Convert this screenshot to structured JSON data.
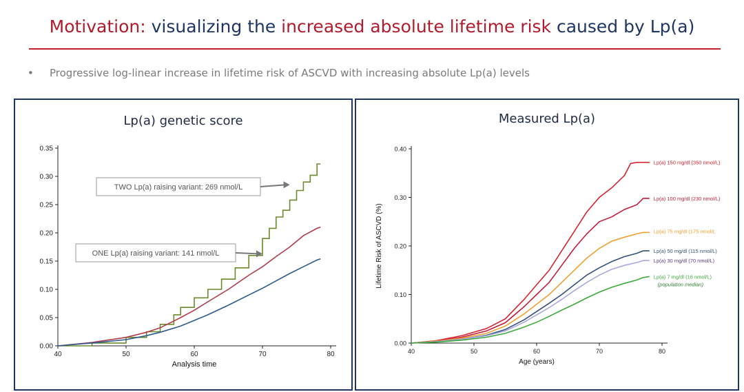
{
  "header": {
    "title_parts": [
      {
        "text": "Motivation: ",
        "color": "#b01c2c"
      },
      {
        "text": "visualizing the ",
        "color": "#1f3564"
      },
      {
        "text": "increased absolute lifetime risk ",
        "color": "#b01c2c"
      },
      {
        "text": "caused by Lp(a)",
        "color": "#1f3564"
      }
    ],
    "bullet": "Progressive log-linear increase in lifetime risk of ASCVD with increasing absolute Lp(a) levels"
  },
  "chart_data": [
    {
      "type": "line",
      "title": "Lp(a) genetic score",
      "xlabel": "Analysis time",
      "ylabel": "",
      "xlim": [
        40,
        80
      ],
      "ylim": [
        0,
        0.35
      ],
      "xticks": [
        "40",
        "50",
        "60",
        "70",
        "80"
      ],
      "yticks": [
        "0.00",
        "0.05",
        "0.10",
        "0.15",
        "0.20",
        "0.25",
        "0.30",
        "0.35"
      ],
      "series": [
        {
          "color": "#6b8a2a",
          "step": true,
          "x": [
            40,
            45,
            50,
            53,
            55,
            57,
            58,
            60,
            62,
            64,
            66,
            68,
            70,
            71,
            72,
            73,
            74,
            75,
            76,
            77,
            78,
            78.5
          ],
          "y": [
            0.0,
            0.005,
            0.015,
            0.025,
            0.038,
            0.055,
            0.068,
            0.085,
            0.1,
            0.118,
            0.138,
            0.16,
            0.19,
            0.208,
            0.228,
            0.24,
            0.258,
            0.275,
            0.29,
            0.302,
            0.322,
            0.322
          ]
        },
        {
          "color": "#b03a4a",
          "x": [
            40,
            45,
            50,
            53,
            55,
            58,
            60,
            62,
            65,
            68,
            70,
            72,
            74,
            76,
            78,
            78.5
          ],
          "y": [
            0.0,
            0.006,
            0.015,
            0.024,
            0.032,
            0.05,
            0.063,
            0.078,
            0.1,
            0.125,
            0.14,
            0.158,
            0.175,
            0.195,
            0.208,
            0.21
          ]
        },
        {
          "color": "#2c5a8c",
          "x": [
            40,
            45,
            50,
            53,
            55,
            58,
            60,
            62,
            65,
            68,
            70,
            72,
            74,
            76,
            78,
            78.5
          ],
          "y": [
            0.0,
            0.005,
            0.011,
            0.018,
            0.024,
            0.035,
            0.045,
            0.055,
            0.072,
            0.09,
            0.102,
            0.115,
            0.128,
            0.14,
            0.152,
            0.154
          ]
        }
      ],
      "annotations": [
        {
          "text": "TWO Lp(a) raising variant: 269 nmol/L",
          "x": 74,
          "y": 0.285
        },
        {
          "text": "ONE Lp(a) raising variant: 141 nmol/L",
          "x": 70,
          "y": 0.163
        }
      ]
    },
    {
      "type": "line",
      "title": "Measured Lp(a)",
      "xlabel": "Age (years)",
      "ylabel": "Lifetime Risk of ASCVD (%)",
      "xlim": [
        40,
        80
      ],
      "ylim": [
        0,
        0.4
      ],
      "xticks": [
        "40",
        "50",
        "60",
        "70",
        "80"
      ],
      "yticks": [
        "0.00",
        "0.10",
        "0.20",
        "0.30",
        "0.40"
      ],
      "series": [
        {
          "name": "Lp(a) 150 mg/dl (350 nmol/L)",
          "color": "#d6222e",
          "x": [
            40,
            44,
            48,
            52,
            55,
            58,
            60,
            62,
            64,
            66,
            68,
            70,
            72,
            74,
            75,
            76,
            78
          ],
          "y": [
            0.0,
            0.005,
            0.015,
            0.03,
            0.05,
            0.09,
            0.12,
            0.15,
            0.19,
            0.23,
            0.27,
            0.3,
            0.32,
            0.345,
            0.37,
            0.372,
            0.372
          ]
        },
        {
          "name": "Lp(a) 100 mg/dl (230 nmol/L)",
          "color": "#c01c3c",
          "x": [
            40,
            44,
            48,
            52,
            55,
            58,
            60,
            62,
            64,
            66,
            68,
            70,
            72,
            74,
            76,
            77,
            78
          ],
          "y": [
            0.0,
            0.004,
            0.012,
            0.025,
            0.042,
            0.075,
            0.1,
            0.125,
            0.16,
            0.195,
            0.225,
            0.25,
            0.26,
            0.275,
            0.285,
            0.298,
            0.298
          ]
        },
        {
          "name": "Lp(a) 75 mg/dl (175 nmol/L",
          "color": "#f0a030",
          "x": [
            40,
            44,
            48,
            52,
            55,
            58,
            60,
            62,
            64,
            66,
            68,
            70,
            72,
            74,
            76,
            77,
            78
          ],
          "y": [
            0.0,
            0.004,
            0.01,
            0.02,
            0.035,
            0.06,
            0.08,
            0.1,
            0.125,
            0.15,
            0.175,
            0.195,
            0.21,
            0.218,
            0.225,
            0.228,
            0.228
          ]
        },
        {
          "name": "Lp(a) 50 mg/dl (115 nmol/L)",
          "color": "#33507a",
          "x": [
            40,
            44,
            48,
            52,
            55,
            58,
            60,
            62,
            64,
            66,
            68,
            70,
            72,
            74,
            76,
            77,
            78
          ],
          "y": [
            0.0,
            0.003,
            0.008,
            0.016,
            0.028,
            0.048,
            0.065,
            0.082,
            0.1,
            0.12,
            0.14,
            0.155,
            0.168,
            0.178,
            0.185,
            0.19,
            0.19
          ]
        },
        {
          "name": "Lp(a) 30 mg/dl (70 nmol/L)",
          "color": "#a8a8e0",
          "x": [
            40,
            44,
            48,
            52,
            55,
            58,
            60,
            62,
            64,
            66,
            68,
            70,
            72,
            74,
            76,
            77,
            78
          ],
          "y": [
            0.0,
            0.003,
            0.008,
            0.015,
            0.025,
            0.043,
            0.058,
            0.073,
            0.09,
            0.108,
            0.125,
            0.14,
            0.152,
            0.16,
            0.166,
            0.17,
            0.17
          ]
        },
        {
          "name": "Lp(a) 7 mg/dl (16 nmol/L)",
          "color": "#3caa3c",
          "x": [
            40,
            44,
            48,
            52,
            55,
            58,
            60,
            62,
            64,
            66,
            68,
            70,
            72,
            74,
            76,
            77,
            78
          ],
          "y": [
            0.0,
            0.002,
            0.006,
            0.012,
            0.02,
            0.033,
            0.043,
            0.055,
            0.068,
            0.08,
            0.093,
            0.105,
            0.115,
            0.123,
            0.13,
            0.135,
            0.137
          ]
        }
      ],
      "annotations": [
        {
          "text": "(population median)"
        }
      ]
    }
  ]
}
